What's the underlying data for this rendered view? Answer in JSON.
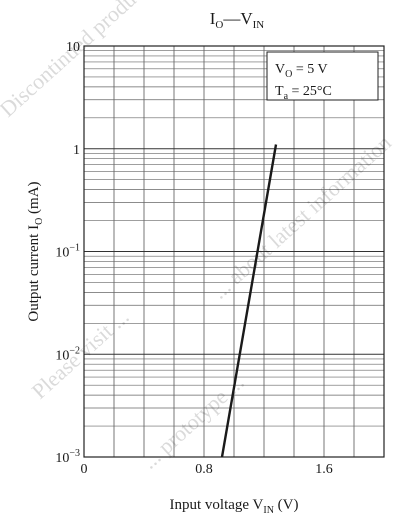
{
  "chart_data": {
    "type": "line",
    "title": {
      "main": "I",
      "main_sub": "O",
      "sep": "—",
      "rest": "V",
      "rest_sub": "IN"
    },
    "xlabel": {
      "main": "Input voltage  V",
      "sub": "IN",
      "tail": "  (V)"
    },
    "ylabel": {
      "main": "Output current  I",
      "sub": "O",
      "tail": "  (mA)"
    },
    "x_ticks": [
      {
        "value": 0,
        "label": "0"
      },
      {
        "value": 0.8,
        "label": "0.8"
      },
      {
        "value": 1.6,
        "label": "1.6"
      }
    ],
    "y_ticks": [
      {
        "value": 10,
        "base": "10",
        "exp": ""
      },
      {
        "value": 1,
        "base": "1",
        "exp": ""
      },
      {
        "value": 0.1,
        "base": "10",
        "exp": "−1"
      },
      {
        "value": 0.01,
        "base": "10",
        "exp": "−2"
      },
      {
        "value": 0.001,
        "base": "10",
        "exp": "−3"
      }
    ],
    "xlim": [
      0,
      2.0
    ],
    "ylim": [
      0.001,
      10
    ],
    "yscale": "log",
    "grid": true,
    "series": [
      {
        "x": [
          0.92,
          1.28
        ],
        "y": [
          0.001,
          1.1
        ]
      }
    ],
    "annotation": {
      "line1": {
        "a": "V",
        "a_sub": "O",
        "b": " = 5 V"
      },
      "line2": {
        "a": "T",
        "a_sub": "a",
        "b": " = 25°C"
      }
    }
  },
  "watermark_lines": [
    "Discontinued product lifecycle stage",
    "Please visit ...",
    "... prototype ...",
    "... about latest information ..."
  ]
}
